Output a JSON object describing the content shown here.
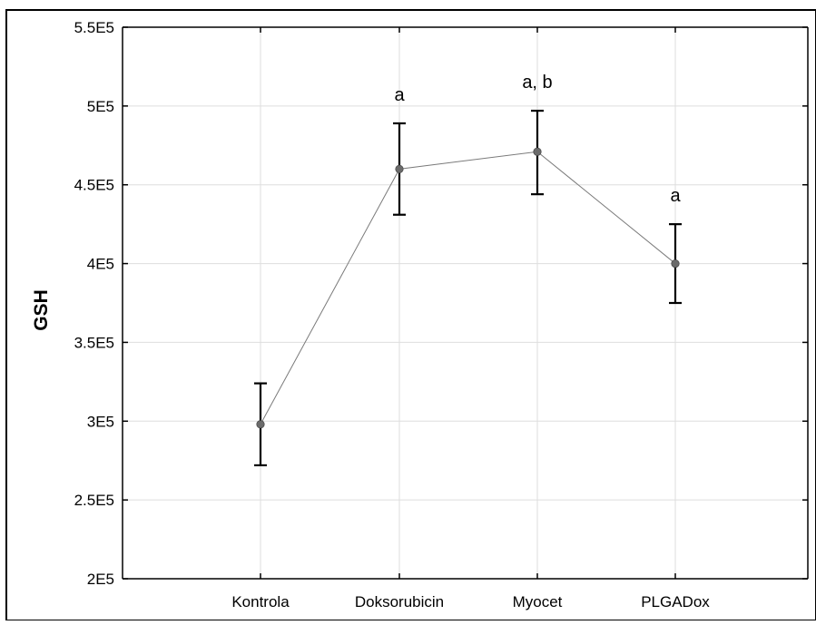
{
  "chart_data": {
    "type": "line",
    "title": "",
    "xlabel": "",
    "ylabel": "GSH",
    "ylim": [
      200000,
      550000
    ],
    "y_ticks": [
      200000,
      250000,
      300000,
      350000,
      400000,
      450000,
      500000,
      550000
    ],
    "y_tick_labels": [
      "2E5",
      "2.5E5",
      "3E5",
      "3.5E5",
      "4E5",
      "4.5E5",
      "5E5",
      "5.5E5"
    ],
    "grid": true,
    "categories": [
      "Kontrola",
      "Doksorubicin",
      "Myocet",
      "PLGADox"
    ],
    "series": [
      {
        "values": [
          298000,
          460000,
          471000,
          400000
        ],
        "error_upper": [
          324000,
          489000,
          497000,
          425000
        ],
        "error_lower": [
          272000,
          431000,
          444000,
          375000
        ]
      }
    ],
    "annotations": [
      "",
      "a",
      "a, b",
      "a"
    ]
  }
}
